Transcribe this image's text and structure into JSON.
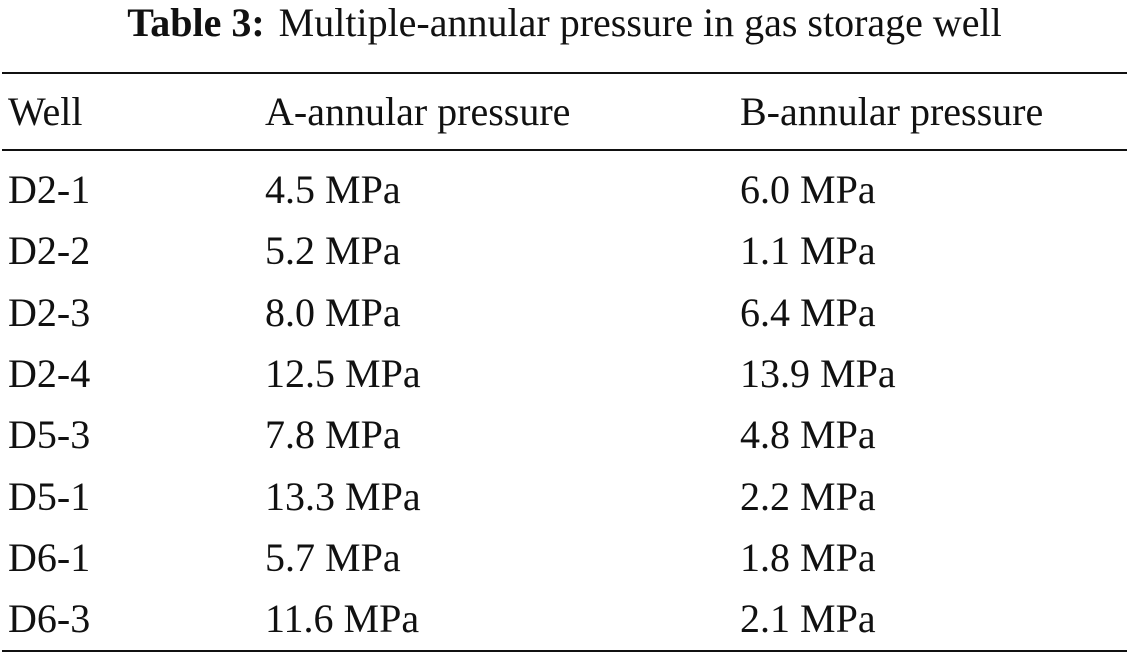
{
  "caption": {
    "label": "Table 3:",
    "text": "Multiple-annular pressure in gas storage well"
  },
  "table": {
    "header": [
      "Well",
      "A-annular pressure",
      "B-annular pressure"
    ],
    "rows": [
      [
        "D2-1",
        "4.5 MPa",
        "6.0 MPa"
      ],
      [
        "D2-2",
        "5.2 MPa",
        "1.1 MPa"
      ],
      [
        "D2-3",
        "8.0 MPa",
        "6.4 MPa"
      ],
      [
        "D2-4",
        "12.5 MPa",
        "13.9 MPa"
      ],
      [
        "D5-3",
        "7.8 MPa",
        "4.8 MPa"
      ],
      [
        "D5-1",
        "13.3 MPa",
        "2.2 MPa"
      ],
      [
        "D6-1",
        "5.7 MPa",
        "1.8 MPa"
      ],
      [
        "D6-3",
        "11.6 MPa",
        "2.1 MPa"
      ]
    ]
  }
}
